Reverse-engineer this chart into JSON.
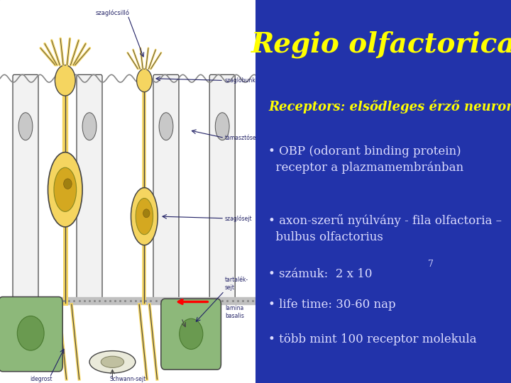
{
  "title": "Regio olfactorica",
  "title_color": "#FFFF00",
  "title_fontsize": 28,
  "title_fontstyle": "italic",
  "title_fontweight": "bold",
  "bg_right": "#2233aa",
  "text_color": "#DDDDFF",
  "subtitle": "Receptors: elsődleges érző neuron:",
  "subtitle_color": "#FFFF00",
  "subtitle_fontstyle": "italic",
  "subtitle_fontweight": "bold",
  "subtitle_fontsize": 13,
  "bullet_color": "#DDDDFF",
  "bullet_fontsize": 12,
  "bullet1": "• OBP (odorant binding protein)\n  receptor a plazmamembránban",
  "bullet2": "• axon-szerű nyúlvány - fila olfactoria –\n  bulbus olfactorius",
  "bullet3_base": "• számuk:  2 x 10",
  "bullet3_sup": "7",
  "bullet4": "• life time: 30-60 nap",
  "bullet5": "• több mint 100 receptor molekula",
  "yellow": "#F5D560",
  "yellow_dark": "#D4A820",
  "yellow_nucleus": "#A08010",
  "green": "#8DB87A",
  "green_dark": "#6A9A50",
  "line_color": "#444444",
  "label_color": "#222266"
}
